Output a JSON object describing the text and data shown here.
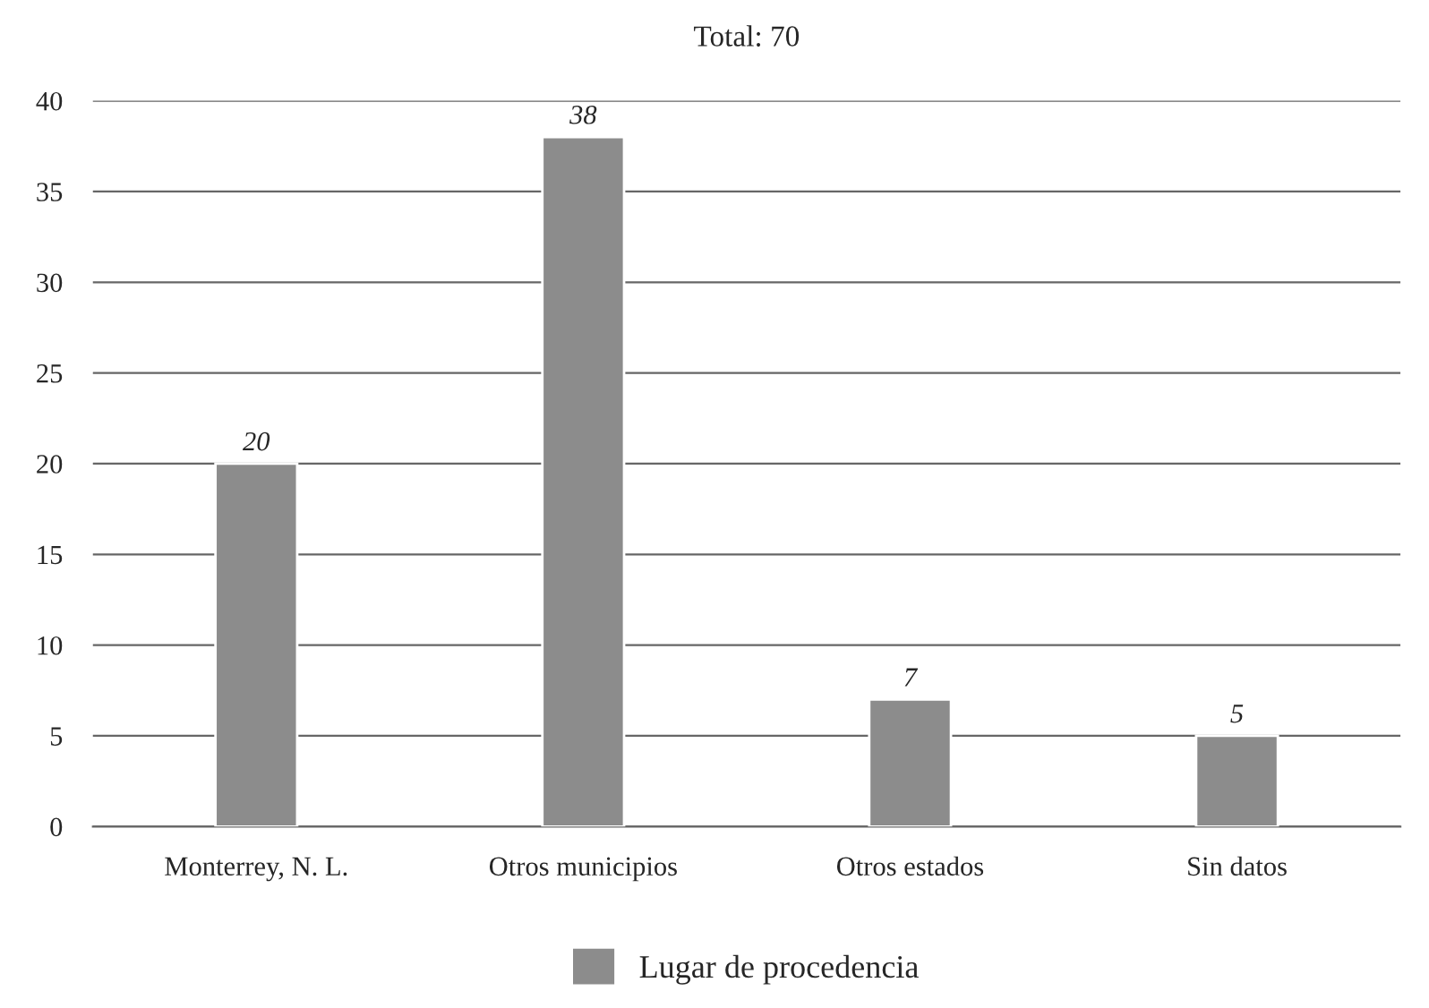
{
  "chart_data": {
    "type": "bar",
    "title": "Total: 70",
    "categories": [
      "Monterrey, N. L.",
      "Otros municipios",
      "Otros estados",
      "Sin datos"
    ],
    "series": [
      {
        "name": "Lugar de procedencia",
        "color": "#8c8c8c",
        "values": [
          20,
          38,
          7,
          5
        ]
      }
    ],
    "ylim": [
      0,
      40
    ],
    "yticks": [
      0,
      5,
      10,
      15,
      20,
      25,
      30,
      35,
      40
    ],
    "grid": "y",
    "legend": "bottom",
    "data_labels": true
  }
}
